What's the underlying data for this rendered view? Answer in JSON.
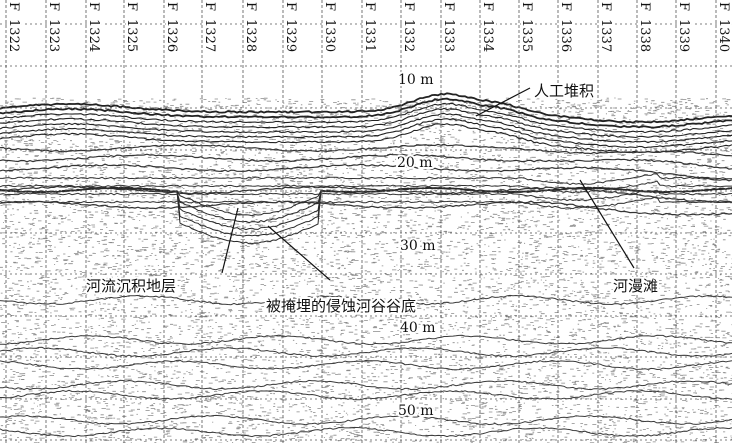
{
  "fix_marks": [
    {
      "prefix": "F",
      "number": "1322"
    },
    {
      "prefix": "F",
      "number": "1323"
    },
    {
      "prefix": "F",
      "number": "1324"
    },
    {
      "prefix": "F",
      "number": "1325"
    },
    {
      "prefix": "F",
      "number": "1326"
    },
    {
      "prefix": "F",
      "number": "1327"
    },
    {
      "prefix": "F",
      "number": "1328"
    },
    {
      "prefix": "F",
      "number": "1329"
    },
    {
      "prefix": "F",
      "number": "1330"
    },
    {
      "prefix": "F",
      "number": "1331"
    },
    {
      "prefix": "F",
      "number": "1332"
    },
    {
      "prefix": "F",
      "number": "1333"
    },
    {
      "prefix": "F",
      "number": "1334"
    },
    {
      "prefix": "F",
      "number": "1335"
    },
    {
      "prefix": "F",
      "number": "1336"
    },
    {
      "prefix": "F",
      "number": "1337"
    },
    {
      "prefix": "F",
      "number": "1338"
    },
    {
      "prefix": "F",
      "number": "1339"
    },
    {
      "prefix": "F",
      "number": "1340"
    }
  ],
  "depth_marks": [
    "10 m",
    "20 m",
    "30 m",
    "40 m",
    "50 m"
  ],
  "annotations": {
    "artificial_fill": "人工堆积",
    "fluvial_strata": "河流沉积地层",
    "buried_valley": "被掩埋的侵蚀河谷谷底",
    "floodplain": "河漫滩"
  },
  "colors": {
    "background": "#ffffff",
    "ink": "#111111",
    "grid": "#555555"
  }
}
